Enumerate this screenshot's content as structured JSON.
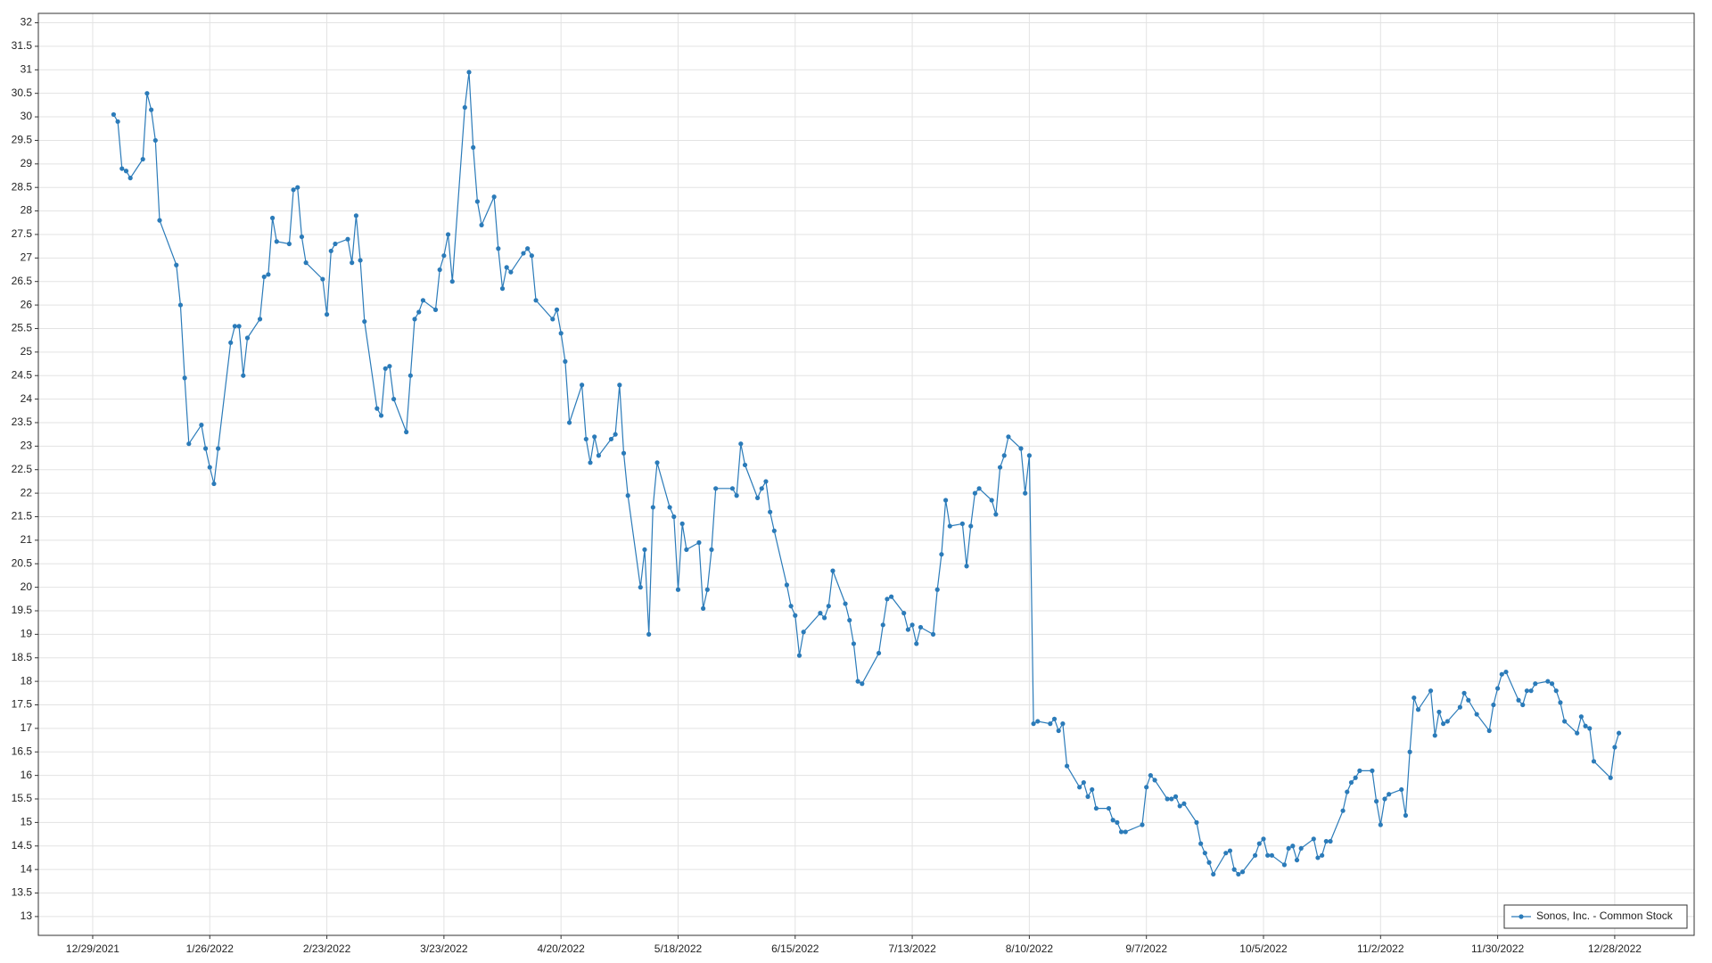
{
  "chart_data": {
    "type": "line",
    "x": [
      "1/3/2022",
      "1/4/2022",
      "1/5/2022",
      "1/6/2022",
      "1/7/2022",
      "1/10/2022",
      "1/11/2022",
      "1/12/2022",
      "1/13/2022",
      "1/14/2022",
      "1/18/2022",
      "1/19/2022",
      "1/20/2022",
      "1/21/2022",
      "1/24/2022",
      "1/25/2022",
      "1/26/2022",
      "1/27/2022",
      "1/28/2022",
      "1/31/2022",
      "2/1/2022",
      "2/2/2022",
      "2/3/2022",
      "2/4/2022",
      "2/7/2022",
      "2/8/2022",
      "2/9/2022",
      "2/10/2022",
      "2/11/2022",
      "2/14/2022",
      "2/15/2022",
      "2/16/2022",
      "2/17/2022",
      "2/18/2022",
      "2/22/2022",
      "2/23/2022",
      "2/24/2022",
      "2/25/2022",
      "2/28/2022",
      "3/1/2022",
      "3/2/2022",
      "3/3/2022",
      "3/4/2022",
      "3/7/2022",
      "3/8/2022",
      "3/9/2022",
      "3/10/2022",
      "3/11/2022",
      "3/14/2022",
      "3/15/2022",
      "3/16/2022",
      "3/17/2022",
      "3/18/2022",
      "3/21/2022",
      "3/22/2022",
      "3/23/2022",
      "3/24/2022",
      "3/25/2022",
      "3/28/2022",
      "3/29/2022",
      "3/30/2022",
      "3/31/2022",
      "4/1/2022",
      "4/4/2022",
      "4/5/2022",
      "4/6/2022",
      "4/7/2022",
      "4/8/2022",
      "4/11/2022",
      "4/12/2022",
      "4/13/2022",
      "4/14/2022",
      "4/18/2022",
      "4/19/2022",
      "4/20/2022",
      "4/21/2022",
      "4/22/2022",
      "4/25/2022",
      "4/26/2022",
      "4/27/2022",
      "4/28/2022",
      "4/29/2022",
      "5/2/2022",
      "5/3/2022",
      "5/4/2022",
      "5/5/2022",
      "5/6/2022",
      "5/9/2022",
      "5/10/2022",
      "5/11/2022",
      "5/12/2022",
      "5/13/2022",
      "5/16/2022",
      "5/17/2022",
      "5/18/2022",
      "5/19/2022",
      "5/20/2022",
      "5/23/2022",
      "5/24/2022",
      "5/25/2022",
      "5/26/2022",
      "5/27/2022",
      "5/31/2022",
      "6/1/2022",
      "6/2/2022",
      "6/3/2022",
      "6/6/2022",
      "6/7/2022",
      "6/8/2022",
      "6/9/2022",
      "6/10/2022",
      "6/13/2022",
      "6/14/2022",
      "6/15/2022",
      "6/16/2022",
      "6/17/2022",
      "6/21/2022",
      "6/22/2022",
      "6/23/2022",
      "6/24/2022",
      "6/27/2022",
      "6/28/2022",
      "6/29/2022",
      "6/30/2022",
      "7/1/2022",
      "7/5/2022",
      "7/6/2022",
      "7/7/2022",
      "7/8/2022",
      "7/11/2022",
      "7/12/2022",
      "7/13/2022",
      "7/14/2022",
      "7/15/2022",
      "7/18/2022",
      "7/19/2022",
      "7/20/2022",
      "7/21/2022",
      "7/22/2022",
      "7/25/2022",
      "7/26/2022",
      "7/27/2022",
      "7/28/2022",
      "7/29/2022",
      "8/1/2022",
      "8/2/2022",
      "8/3/2022",
      "8/4/2022",
      "8/5/2022",
      "8/8/2022",
      "8/9/2022",
      "8/10/2022",
      "8/11/2022",
      "8/12/2022",
      "8/15/2022",
      "8/16/2022",
      "8/17/2022",
      "8/18/2022",
      "8/19/2022",
      "8/22/2022",
      "8/23/2022",
      "8/24/2022",
      "8/25/2022",
      "8/26/2022",
      "8/29/2022",
      "8/30/2022",
      "8/31/2022",
      "9/1/2022",
      "9/2/2022",
      "9/6/2022",
      "9/7/2022",
      "9/8/2022",
      "9/9/2022",
      "9/12/2022",
      "9/13/2022",
      "9/14/2022",
      "9/15/2022",
      "9/16/2022",
      "9/19/2022",
      "9/20/2022",
      "9/21/2022",
      "9/22/2022",
      "9/23/2022",
      "9/26/2022",
      "9/27/2022",
      "9/28/2022",
      "9/29/2022",
      "9/30/2022",
      "10/3/2022",
      "10/4/2022",
      "10/5/2022",
      "10/6/2022",
      "10/7/2022",
      "10/10/2022",
      "10/11/2022",
      "10/12/2022",
      "10/13/2022",
      "10/14/2022",
      "10/17/2022",
      "10/18/2022",
      "10/19/2022",
      "10/20/2022",
      "10/21/2022",
      "10/24/2022",
      "10/25/2022",
      "10/26/2022",
      "10/27/2022",
      "10/28/2022",
      "10/31/2022",
      "11/1/2022",
      "11/2/2022",
      "11/3/2022",
      "11/4/2022",
      "11/7/2022",
      "11/8/2022",
      "11/9/2022",
      "11/10/2022",
      "11/11/2022",
      "11/14/2022",
      "11/15/2022",
      "11/16/2022",
      "11/17/2022",
      "11/18/2022",
      "11/21/2022",
      "11/22/2022",
      "11/23/2022",
      "11/25/2022",
      "11/28/2022",
      "11/29/2022",
      "11/30/2022",
      "12/1/2022",
      "12/2/2022",
      "12/5/2022",
      "12/6/2022",
      "12/7/2022",
      "12/8/2022",
      "12/9/2022",
      "12/12/2022",
      "12/13/2022",
      "12/14/2022",
      "12/15/2022",
      "12/16/2022",
      "12/19/2022",
      "12/20/2022",
      "12/21/2022",
      "12/22/2022",
      "12/23/2022",
      "12/27/2022",
      "12/28/2022",
      "12/29/2022"
    ],
    "series": [
      {
        "name": "Sonos, Inc. - Common Stock",
        "color": "#2b7bb9",
        "values": [
          30.05,
          29.9,
          28.9,
          28.85,
          28.7,
          29.1,
          30.5,
          30.15,
          29.5,
          27.8,
          26.85,
          26.0,
          24.45,
          23.05,
          23.45,
          22.95,
          22.55,
          22.2,
          22.95,
          25.2,
          25.55,
          25.55,
          24.5,
          25.3,
          25.7,
          26.6,
          26.65,
          27.85,
          27.35,
          27.3,
          28.45,
          28.5,
          27.45,
          26.9,
          26.55,
          25.8,
          27.15,
          27.3,
          27.4,
          26.9,
          27.9,
          26.95,
          25.65,
          23.8,
          23.65,
          24.65,
          24.7,
          24.0,
          23.3,
          24.5,
          25.7,
          25.85,
          26.1,
          25.9,
          26.75,
          27.05,
          27.5,
          26.5,
          30.2,
          30.95,
          29.35,
          28.2,
          27.7,
          28.3,
          27.2,
          26.35,
          26.8,
          26.7,
          27.1,
          27.2,
          27.05,
          26.1,
          25.7,
          25.9,
          25.4,
          24.8,
          23.5,
          24.3,
          23.15,
          22.65,
          23.2,
          22.8,
          23.15,
          23.25,
          24.3,
          22.85,
          21.95,
          20.0,
          20.8,
          19.0,
          21.7,
          22.65,
          21.7,
          21.5,
          19.95,
          21.35,
          20.8,
          20.95,
          19.55,
          19.95,
          20.8,
          22.1,
          22.1,
          21.95,
          23.05,
          22.6,
          21.9,
          22.1,
          22.25,
          21.6,
          21.2,
          20.05,
          19.6,
          19.4,
          18.55,
          19.05,
          19.45,
          19.35,
          19.6,
          20.35,
          19.65,
          19.3,
          18.8,
          18.0,
          17.95,
          18.6,
          19.2,
          19.75,
          19.8,
          19.45,
          19.1,
          19.2,
          18.8,
          19.15,
          19.0,
          19.95,
          20.7,
          21.85,
          21.3,
          21.35,
          20.45,
          21.3,
          22.0,
          22.1,
          21.85,
          21.55,
          22.55,
          22.8,
          23.2,
          22.95,
          22.0,
          22.8,
          17.1,
          17.15,
          17.1,
          17.2,
          16.95,
          17.1,
          16.2,
          15.75,
          15.85,
          15.55,
          15.7,
          15.3,
          15.3,
          15.05,
          15.0,
          14.8,
          14.8,
          14.95,
          15.75,
          16.0,
          15.9,
          15.5,
          15.5,
          15.55,
          15.35,
          15.4,
          15.0,
          14.55,
          14.35,
          14.15,
          13.9,
          14.35,
          14.4,
          14.0,
          13.9,
          13.95,
          14.3,
          14.55,
          14.65,
          14.3,
          14.3,
          14.1,
          14.45,
          14.5,
          14.2,
          14.45,
          14.65,
          14.25,
          14.3,
          14.6,
          14.6,
          15.25,
          15.65,
          15.85,
          15.95,
          16.1,
          16.1,
          15.45,
          14.95,
          15.5,
          15.6,
          15.7,
          15.15,
          16.5,
          17.65,
          17.4,
          17.8,
          16.85,
          17.35,
          17.1,
          17.15,
          17.45,
          17.75,
          17.6,
          17.3,
          16.95,
          17.5,
          17.85,
          18.15,
          18.2,
          17.6,
          17.5,
          17.8,
          17.8,
          17.95,
          18.0,
          17.95,
          17.8,
          17.55,
          17.15,
          16.9,
          17.25,
          17.05,
          17.0,
          16.3,
          15.95,
          16.6,
          16.9
        ]
      }
    ],
    "xlim": [
      "12/16/2021",
      "1/16/2023"
    ],
    "xticks": [
      "12/29/2021",
      "1/26/2022",
      "2/23/2022",
      "3/23/2022",
      "4/20/2022",
      "5/18/2022",
      "6/15/2022",
      "7/13/2022",
      "8/10/2022",
      "9/7/2022",
      "10/5/2022",
      "11/2/2022",
      "11/30/2022",
      "12/28/2022"
    ],
    "ylim": [
      12.6,
      32.2
    ],
    "yticks": [
      13,
      13.5,
      14,
      14.5,
      15,
      15.5,
      16,
      16.5,
      17,
      17.5,
      18,
      18.5,
      19,
      19.5,
      20,
      20.5,
      21,
      21.5,
      22,
      22.5,
      23,
      23.5,
      24,
      24.5,
      25,
      25.5,
      26,
      26.5,
      27,
      27.5,
      28,
      28.5,
      29,
      29.5,
      30,
      30.5,
      31,
      31.5,
      32
    ],
    "grid": true,
    "legend": "lower right"
  }
}
